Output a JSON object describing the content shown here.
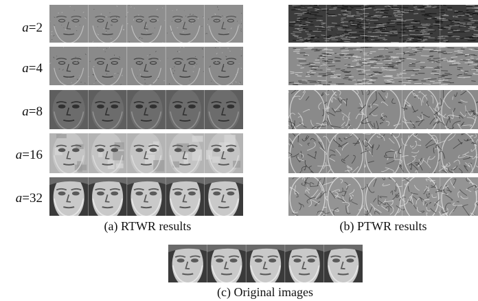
{
  "figure": {
    "rows": [
      {
        "var": "a",
        "value": "2"
      },
      {
        "var": "a",
        "value": "4"
      },
      {
        "var": "a",
        "value": "8"
      },
      {
        "var": "a",
        "value": "16"
      },
      {
        "var": "a",
        "value": "32"
      }
    ],
    "captions": {
      "rtwr": "(a) RTWR results",
      "ptwr": "(b) PTWR results",
      "original": "(c) Original images"
    },
    "faces_per_strip": 5
  }
}
